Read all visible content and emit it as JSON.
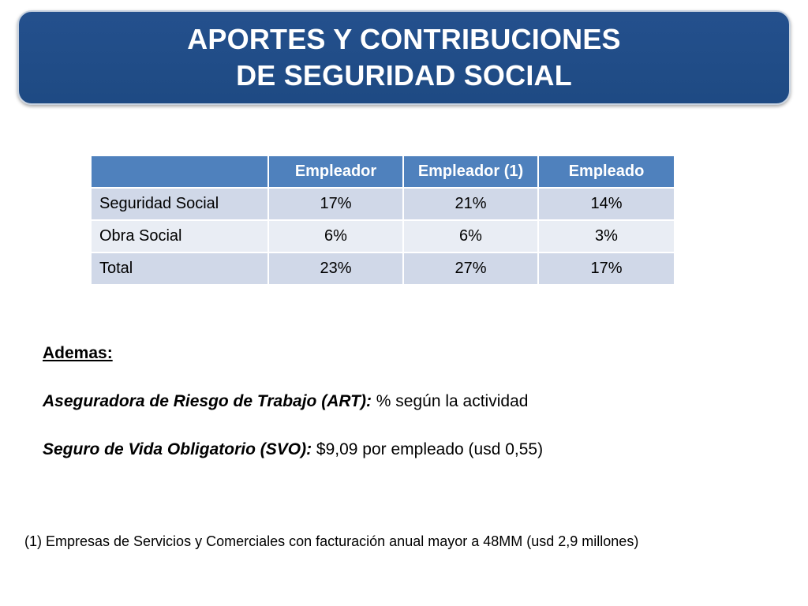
{
  "title": {
    "line1": "APORTES Y CONTRIBUCIONES",
    "line2": "DE SEGURIDAD SOCIAL"
  },
  "table": {
    "headers": [
      "",
      "Empleador",
      "Empleador (1)",
      "Empleado"
    ],
    "rows": [
      {
        "label": "Seguridad Social",
        "values": [
          "17%",
          "21%",
          "14%"
        ]
      },
      {
        "label": "Obra Social",
        "values": [
          "6%",
          "6%",
          "3%"
        ]
      },
      {
        "label": "Total",
        "values": [
          "23%",
          "27%",
          "17%"
        ]
      }
    ]
  },
  "notes": {
    "heading": "Ademas:",
    "art_label": "Aseguradora de Riesgo de Trabajo (ART):",
    "art_value": " % según la actividad",
    "svo_label": "Seguro de Vida Obligatorio (SVO):",
    "svo_value": " $9,09 por empleado (usd 0,55)"
  },
  "footnote": "(1) Empresas de Servicios y Comerciales con facturación anual mayor a 48MM (usd 2,9 millones)",
  "colors": {
    "banner": "#1e4a83",
    "table_header": "#4f81bd",
    "row_dark": "#d0d8e8",
    "row_light": "#e9edf4"
  }
}
